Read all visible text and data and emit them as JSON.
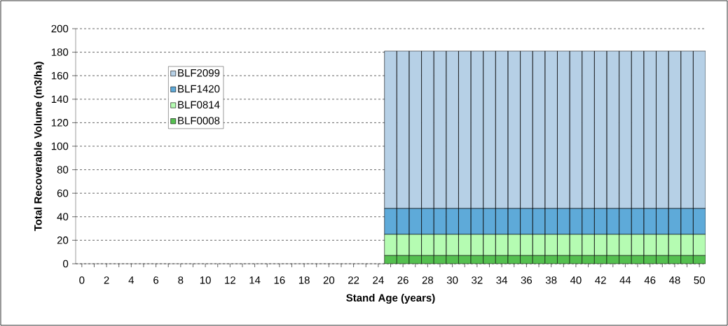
{
  "chart_data": {
    "type": "bar",
    "stacked": true,
    "xlabel": "Stand Age (years)",
    "ylabel": "Total Recoverable Volume (m3/ha)",
    "categories": [
      "0",
      null,
      "2",
      null,
      "4",
      null,
      "6",
      null,
      "8",
      null,
      "10",
      null,
      "12",
      null,
      "14",
      null,
      "16",
      null,
      "18",
      null,
      "20",
      null,
      "22",
      null,
      "24",
      null,
      "26",
      null,
      "28",
      null,
      "30",
      null,
      "32",
      null,
      "34",
      null,
      "36",
      null,
      "38",
      null,
      "40",
      null,
      "42",
      null,
      "44",
      null,
      "46",
      null,
      "48",
      null,
      "50"
    ],
    "series": [
      {
        "name": "BLF0008",
        "color": "#55c050",
        "values": [
          null,
          null,
          null,
          null,
          null,
          null,
          null,
          null,
          null,
          null,
          null,
          null,
          null,
          null,
          null,
          null,
          null,
          null,
          null,
          null,
          null,
          null,
          null,
          null,
          null,
          7,
          7,
          7,
          7,
          7,
          7,
          7,
          7,
          7,
          7,
          7,
          7,
          7,
          7,
          7,
          7,
          7,
          7,
          7,
          7,
          7,
          7,
          7,
          7,
          7,
          7
        ]
      },
      {
        "name": "BLF0814",
        "color": "#b5fcb2",
        "values": [
          null,
          null,
          null,
          null,
          null,
          null,
          null,
          null,
          null,
          null,
          null,
          null,
          null,
          null,
          null,
          null,
          null,
          null,
          null,
          null,
          null,
          null,
          null,
          null,
          null,
          18,
          18,
          18,
          18,
          18,
          18,
          18,
          18,
          18,
          18,
          18,
          18,
          18,
          18,
          18,
          18,
          18,
          18,
          18,
          18,
          18,
          18,
          18,
          18,
          18,
          18
        ]
      },
      {
        "name": "BLF1420",
        "color": "#5eaad9",
        "values": [
          null,
          null,
          null,
          null,
          null,
          null,
          null,
          null,
          null,
          null,
          null,
          null,
          null,
          null,
          null,
          null,
          null,
          null,
          null,
          null,
          null,
          null,
          null,
          null,
          null,
          22,
          22,
          22,
          22,
          22,
          22,
          22,
          22,
          22,
          22,
          22,
          22,
          22,
          22,
          22,
          22,
          22,
          22,
          22,
          22,
          22,
          22,
          22,
          22,
          22,
          22
        ]
      },
      {
        "name": "BLF2099",
        "color": "#b6d0e6",
        "values": [
          null,
          null,
          null,
          null,
          null,
          null,
          null,
          null,
          null,
          null,
          null,
          null,
          null,
          null,
          null,
          null,
          null,
          null,
          null,
          null,
          null,
          null,
          null,
          null,
          null,
          134,
          134,
          134,
          134,
          134,
          134,
          134,
          134,
          134,
          134,
          134,
          134,
          134,
          134,
          134,
          134,
          134,
          134,
          134,
          134,
          134,
          134,
          134,
          134,
          134,
          134
        ]
      }
    ],
    "ylim": [
      0,
      200
    ],
    "yticks": [
      0,
      20,
      40,
      60,
      80,
      100,
      120,
      140,
      160,
      180,
      200
    ],
    "grid": "y",
    "legend": "top left"
  }
}
